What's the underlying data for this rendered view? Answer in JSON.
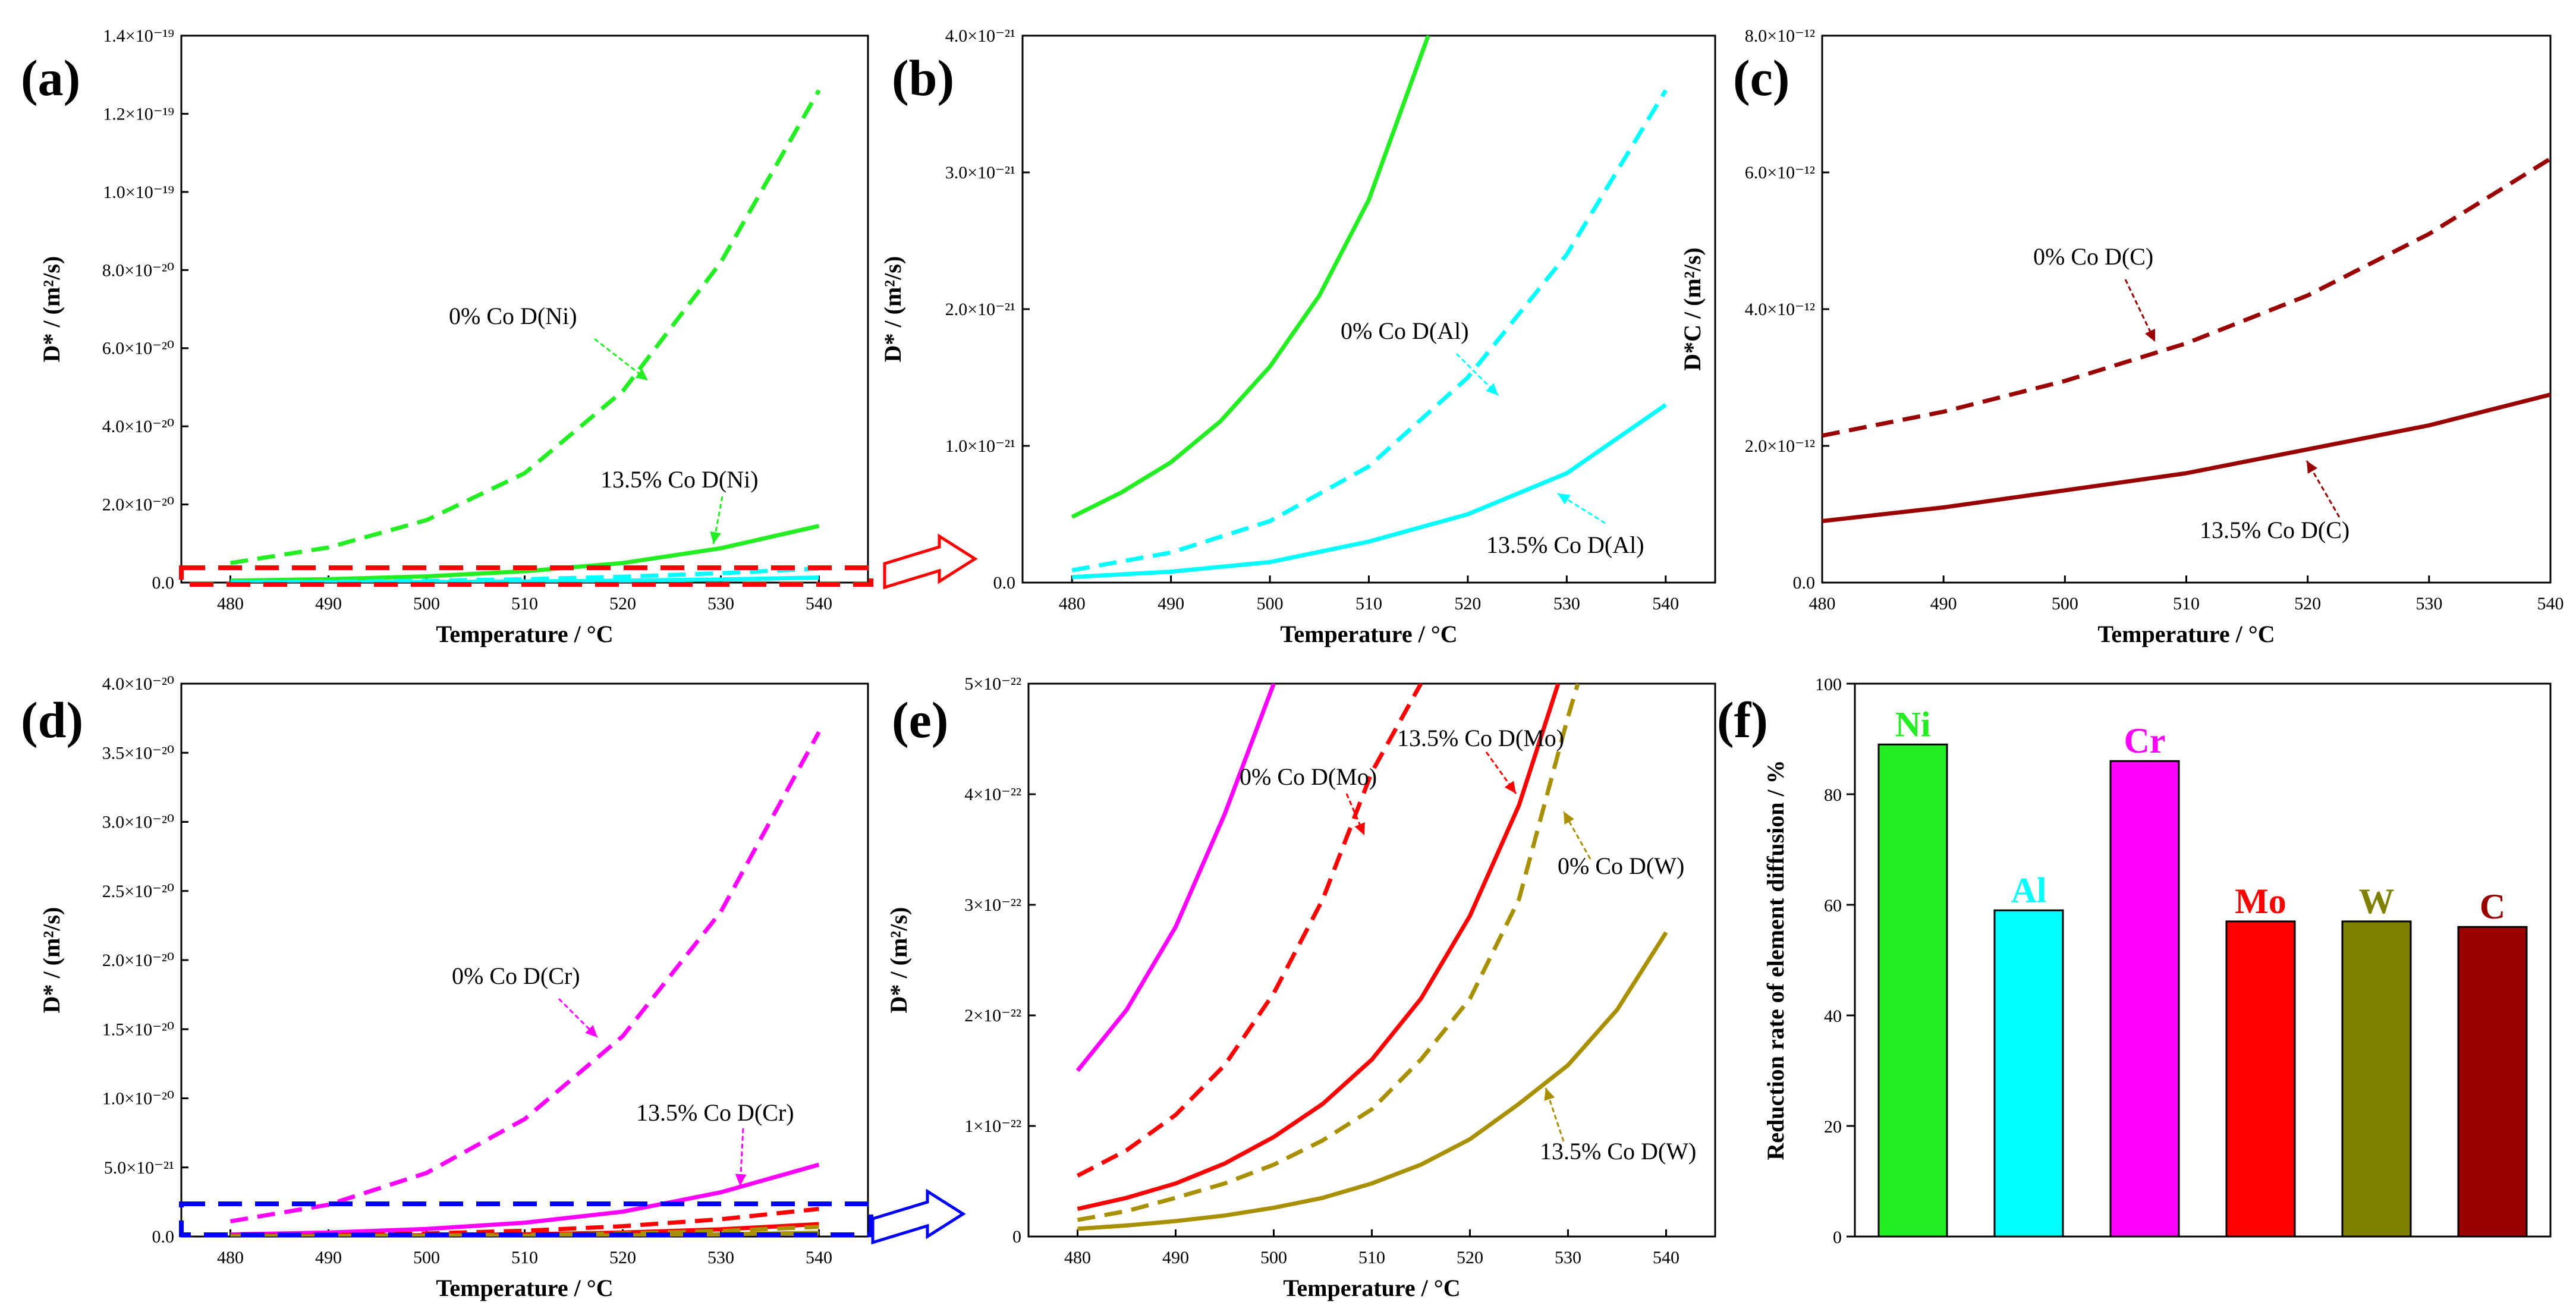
{
  "figure": {
    "panel_labels": [
      "(a)",
      "(b)",
      "(c)",
      "(d)",
      "(e)",
      "(f)"
    ],
    "colors": {
      "Ni": "#22ee22",
      "Al": "#00ffff",
      "Cr": "#ff00ff",
      "Mo": "#ff0000",
      "W": "#a89000",
      "C": "#9a0000",
      "bar_W": "#808000",
      "box_red": "#ff0000",
      "box_blue": "#0000ff"
    }
  },
  "chart_data": [
    {
      "panel": "(a)",
      "type": "line",
      "xlabel": "Temperature / °C",
      "ylabel": "D* / (m²/s)",
      "xlim": [
        475,
        545
      ],
      "ylim": [
        0,
        1.4e-19
      ],
      "xticks": [
        "480",
        "490",
        "500",
        "510",
        "520",
        "530",
        "540"
      ],
      "yticks": [
        "0.0",
        "2.0×10⁻²⁰",
        "4.0×10⁻²⁰",
        "6.0×10⁻²⁰",
        "8.0×10⁻²⁰",
        "1.0×10⁻¹⁹",
        "1.2×10⁻¹⁹",
        "1.4×10⁻¹⁹"
      ],
      "series": [
        {
          "name": "0% Co D(Ni)",
          "style": "dashed",
          "color": "#22ee22",
          "x": [
            480,
            490,
            500,
            510,
            520,
            530,
            540
          ],
          "y": [
            5e-21,
            9e-21,
            1.6e-20,
            2.8e-20,
            4.9e-20,
            8.2e-20,
            1.26e-19
          ]
        },
        {
          "name": "13.5% Co D(Ni)",
          "style": "solid",
          "color": "#22ee22",
          "x": [
            480,
            490,
            500,
            510,
            520,
            530,
            540
          ],
          "y": [
            5e-22,
            8.8e-22,
            1.6e-21,
            2.9e-21,
            5e-21,
            8.8e-21,
            1.45e-20
          ]
        },
        {
          "name": "0% Co D(Al)",
          "style": "dashed",
          "color": "#00ffff",
          "x": [
            480,
            490,
            500,
            510,
            520,
            530,
            540
          ],
          "y": [
            9e-23,
            2.2e-22,
            4.5e-22,
            8.5e-22,
            1.5e-21,
            2.4e-21,
            3.6e-21
          ]
        },
        {
          "name": "13.5% Co D(Al)",
          "style": "solid",
          "color": "#00ffff",
          "x": [
            480,
            490,
            500,
            510,
            520,
            530,
            540
          ],
          "y": [
            4e-23,
            8e-23,
            1.5e-22,
            3e-22,
            5e-22,
            8e-22,
            1.3e-21
          ]
        }
      ],
      "annotations": [
        "0% Co  D(Ni)",
        "13.5% Co  D(Ni)"
      ]
    },
    {
      "panel": "(b)",
      "type": "line",
      "xlabel": "Temperature / °C",
      "ylabel": "D* / (m²/s)",
      "xlim": [
        475,
        545
      ],
      "ylim": [
        0,
        4e-21
      ],
      "xticks": [
        "480",
        "490",
        "500",
        "510",
        "520",
        "530",
        "540"
      ],
      "yticks": [
        "0.0",
        "1.0×10⁻²¹",
        "2.0×10⁻²¹",
        "3.0×10⁻²¹",
        "4.0×10⁻²¹"
      ],
      "series": [
        {
          "name": "13.5% Co D(Ni)",
          "style": "solid",
          "color": "#22ee22",
          "x": [
            480,
            485,
            490,
            495,
            500,
            505,
            510,
            515,
            516
          ],
          "y": [
            4.8e-22,
            6.6e-22,
            8.8e-22,
            1.18e-21,
            1.58e-21,
            2.1e-21,
            2.8e-21,
            3.8e-21,
            4e-21
          ]
        },
        {
          "name": "0% Co D(Al)",
          "style": "dashed",
          "color": "#00ffff",
          "x": [
            480,
            490,
            500,
            510,
            520,
            530,
            540
          ],
          "y": [
            9e-23,
            2.2e-22,
            4.5e-22,
            8.5e-22,
            1.5e-21,
            2.4e-21,
            3.6e-21
          ]
        },
        {
          "name": "13.5% Co D(Al)",
          "style": "solid",
          "color": "#00ffff",
          "x": [
            480,
            490,
            500,
            510,
            520,
            530,
            540
          ],
          "y": [
            4e-23,
            8e-23,
            1.5e-22,
            3e-22,
            5e-22,
            8e-22,
            1.3e-21
          ]
        }
      ],
      "annotations": [
        "0% Co  D(Al)",
        "13.5% Co  D(Al)"
      ]
    },
    {
      "panel": "(c)",
      "type": "line",
      "xlabel": "Temperature / °C",
      "ylabel": "D*C / (m²/s)",
      "xlim": [
        480,
        540
      ],
      "ylim": [
        0,
        8e-12
      ],
      "xticks": [
        "480",
        "490",
        "500",
        "510",
        "520",
        "530",
        "540"
      ],
      "yticks": [
        "0.0",
        "2.0×10⁻¹²",
        "4.0×10⁻¹²",
        "6.0×10⁻¹²",
        "8.0×10⁻¹²"
      ],
      "series": [
        {
          "name": "0% Co D(C)",
          "style": "dashed",
          "color": "#9a0000",
          "x": [
            480,
            490,
            500,
            510,
            520,
            530,
            540
          ],
          "y": [
            2.15e-12,
            2.5e-12,
            2.95e-12,
            3.5e-12,
            4.2e-12,
            5.1e-12,
            6.2e-12
          ]
        },
        {
          "name": "13.5% Co D(C)",
          "style": "solid",
          "color": "#9a0000",
          "x": [
            480,
            490,
            500,
            510,
            520,
            530,
            540
          ],
          "y": [
            9e-13,
            1.1e-12,
            1.35e-12,
            1.6e-12,
            1.95e-12,
            2.3e-12,
            2.75e-12
          ]
        }
      ],
      "annotations": [
        "0% Co  D(C)",
        "13.5% Co  D(C)"
      ]
    },
    {
      "panel": "(d)",
      "type": "line",
      "xlabel": "Temperature / °C",
      "ylabel": "D* / (m²/s)",
      "xlim": [
        475,
        545
      ],
      "ylim": [
        0,
        4e-20
      ],
      "xticks": [
        "480",
        "490",
        "500",
        "510",
        "520",
        "530",
        "540"
      ],
      "yticks": [
        "0.0",
        "5.0×10⁻²¹",
        "1.0×10⁻²⁰",
        "1.5×10⁻²⁰",
        "2.0×10⁻²⁰",
        "2.5×10⁻²⁰",
        "3.0×10⁻²⁰",
        "3.5×10⁻²⁰",
        "4.0×10⁻²⁰"
      ],
      "series": [
        {
          "name": "0% Co D(Cr)",
          "style": "dashed",
          "color": "#ff00ff",
          "x": [
            480,
            490,
            500,
            510,
            520,
            530,
            540
          ],
          "y": [
            1.1e-21,
            2.3e-21,
            4.6e-21,
            8.5e-21,
            1.45e-20,
            2.35e-20,
            3.65e-20
          ]
        },
        {
          "name": "13.5% Co D(Cr)",
          "style": "solid",
          "color": "#ff00ff",
          "x": [
            480,
            490,
            500,
            510,
            520,
            530,
            540
          ],
          "y": [
            1.5e-22,
            2.9e-22,
            5.5e-22,
            1e-21,
            1.8e-21,
            3.2e-21,
            5.2e-21
          ]
        },
        {
          "name": "0% Co D(Mo)",
          "style": "dashed",
          "color": "#ff0000",
          "x": [
            480,
            490,
            500,
            510,
            520,
            530,
            540
          ],
          "y": [
            5.5e-23,
            1.1e-22,
            2.2e-22,
            4.2e-22,
            7.5e-22,
            1.25e-21,
            2e-21
          ]
        },
        {
          "name": "13.5% Co D(Mo)",
          "style": "solid",
          "color": "#ff0000",
          "x": [
            480,
            490,
            500,
            510,
            520,
            530,
            540
          ],
          "y": [
            2.5e-23,
            4.8e-23,
            9e-23,
            1.6e-22,
            2.9e-22,
            5.2e-22,
            9e-22
          ]
        },
        {
          "name": "0% Co D(W)",
          "style": "dashed",
          "color": "#a89000",
          "x": [
            480,
            490,
            500,
            510,
            520,
            530,
            540
          ],
          "y": [
            1.5e-23,
            3.5e-23,
            6.5e-23,
            1.15e-22,
            2.15e-22,
            4e-22,
            7e-22
          ]
        },
        {
          "name": "13.5% Co D(W)",
          "style": "solid",
          "color": "#a89000",
          "x": [
            480,
            490,
            500,
            510,
            520,
            530,
            540
          ],
          "y": [
            7e-24,
            1.4e-23,
            2.6e-23,
            4.8e-23,
            8.8e-23,
            1.55e-22,
            2.75e-22
          ]
        }
      ],
      "annotations": [
        "0% Co  D(Cr)",
        "13.5% Co  D(Cr)"
      ]
    },
    {
      "panel": "(e)",
      "type": "line",
      "xlabel": "Temperature / °C",
      "ylabel": "D* / (m²/s)",
      "xlim": [
        475,
        545
      ],
      "ylim": [
        0,
        5e-22
      ],
      "xticks": [
        "480",
        "490",
        "500",
        "510",
        "520",
        "530",
        "540"
      ],
      "yticks": [
        "0",
        "1×10⁻²²",
        "2×10⁻²²",
        "3×10⁻²²",
        "4×10⁻²²",
        "5×10⁻²²"
      ],
      "series": [
        {
          "name": "13.5% Co D(Cr)",
          "style": "solid",
          "color": "#ff00ff",
          "x": [
            480,
            485,
            490,
            495,
            500
          ],
          "y": [
            1.5e-22,
            2.05e-22,
            2.8e-22,
            3.82e-22,
            5e-22
          ]
        },
        {
          "name": "0% Co D(Mo)",
          "style": "dashed",
          "color": "#ff0000",
          "x": [
            480,
            485,
            490,
            495,
            500,
            505,
            510,
            515
          ],
          "y": [
            5.5e-23,
            7.8e-23,
            1.1e-22,
            1.55e-22,
            2.2e-22,
            3.05e-22,
            4.2e-22,
            5e-22
          ]
        },
        {
          "name": "13.5% Co D(Mo)",
          "style": "solid",
          "color": "#ff0000",
          "x": [
            480,
            485,
            490,
            495,
            500,
            505,
            510,
            515,
            520,
            525,
            529
          ],
          "y": [
            2.5e-23,
            3.5e-23,
            4.8e-23,
            6.6e-23,
            9e-23,
            1.2e-22,
            1.6e-22,
            2.15e-22,
            2.9e-22,
            3.9e-22,
            5e-22
          ]
        },
        {
          "name": "0% Co D(W)",
          "style": "dashed",
          "color": "#a89000",
          "x": [
            480,
            485,
            490,
            495,
            500,
            505,
            510,
            515,
            520,
            525,
            530,
            531
          ],
          "y": [
            1.5e-23,
            2.3e-23,
            3.5e-23,
            4.8e-23,
            6.5e-23,
            8.7e-23,
            1.15e-22,
            1.6e-22,
            2.15e-22,
            3.05e-22,
            4.7e-22,
            5e-22
          ]
        },
        {
          "name": "13.5% Co D(W)",
          "style": "solid",
          "color": "#a89000",
          "x": [
            480,
            485,
            490,
            495,
            500,
            505,
            510,
            515,
            520,
            525,
            530,
            535,
            540
          ],
          "y": [
            7e-24,
            1e-23,
            1.4e-23,
            1.9e-23,
            2.6e-23,
            3.5e-23,
            4.8e-23,
            6.5e-23,
            8.8e-23,
            1.2e-22,
            1.55e-22,
            2.05e-22,
            2.75e-22
          ]
        }
      ],
      "annotations": [
        "0% Co  D(Mo)",
        "13.5% Co  D(Mo)",
        "0% Co  D(W)",
        "13.5% Co  D(W)"
      ]
    },
    {
      "panel": "(f)",
      "type": "bar",
      "xlabel": "",
      "ylabel": "Reduction rate of element diffusion / %",
      "ylim": [
        0,
        100
      ],
      "yticks": [
        "0",
        "20",
        "40",
        "60",
        "80",
        "100"
      ],
      "categories": [
        "Ni",
        "Al",
        "Cr",
        "Mo",
        "W",
        "C"
      ],
      "values": [
        89,
        59,
        86,
        57,
        57,
        56
      ],
      "colors": [
        "#22ee22",
        "#00ffff",
        "#ff00ff",
        "#ff0000",
        "#808000",
        "#9a0000"
      ]
    }
  ]
}
